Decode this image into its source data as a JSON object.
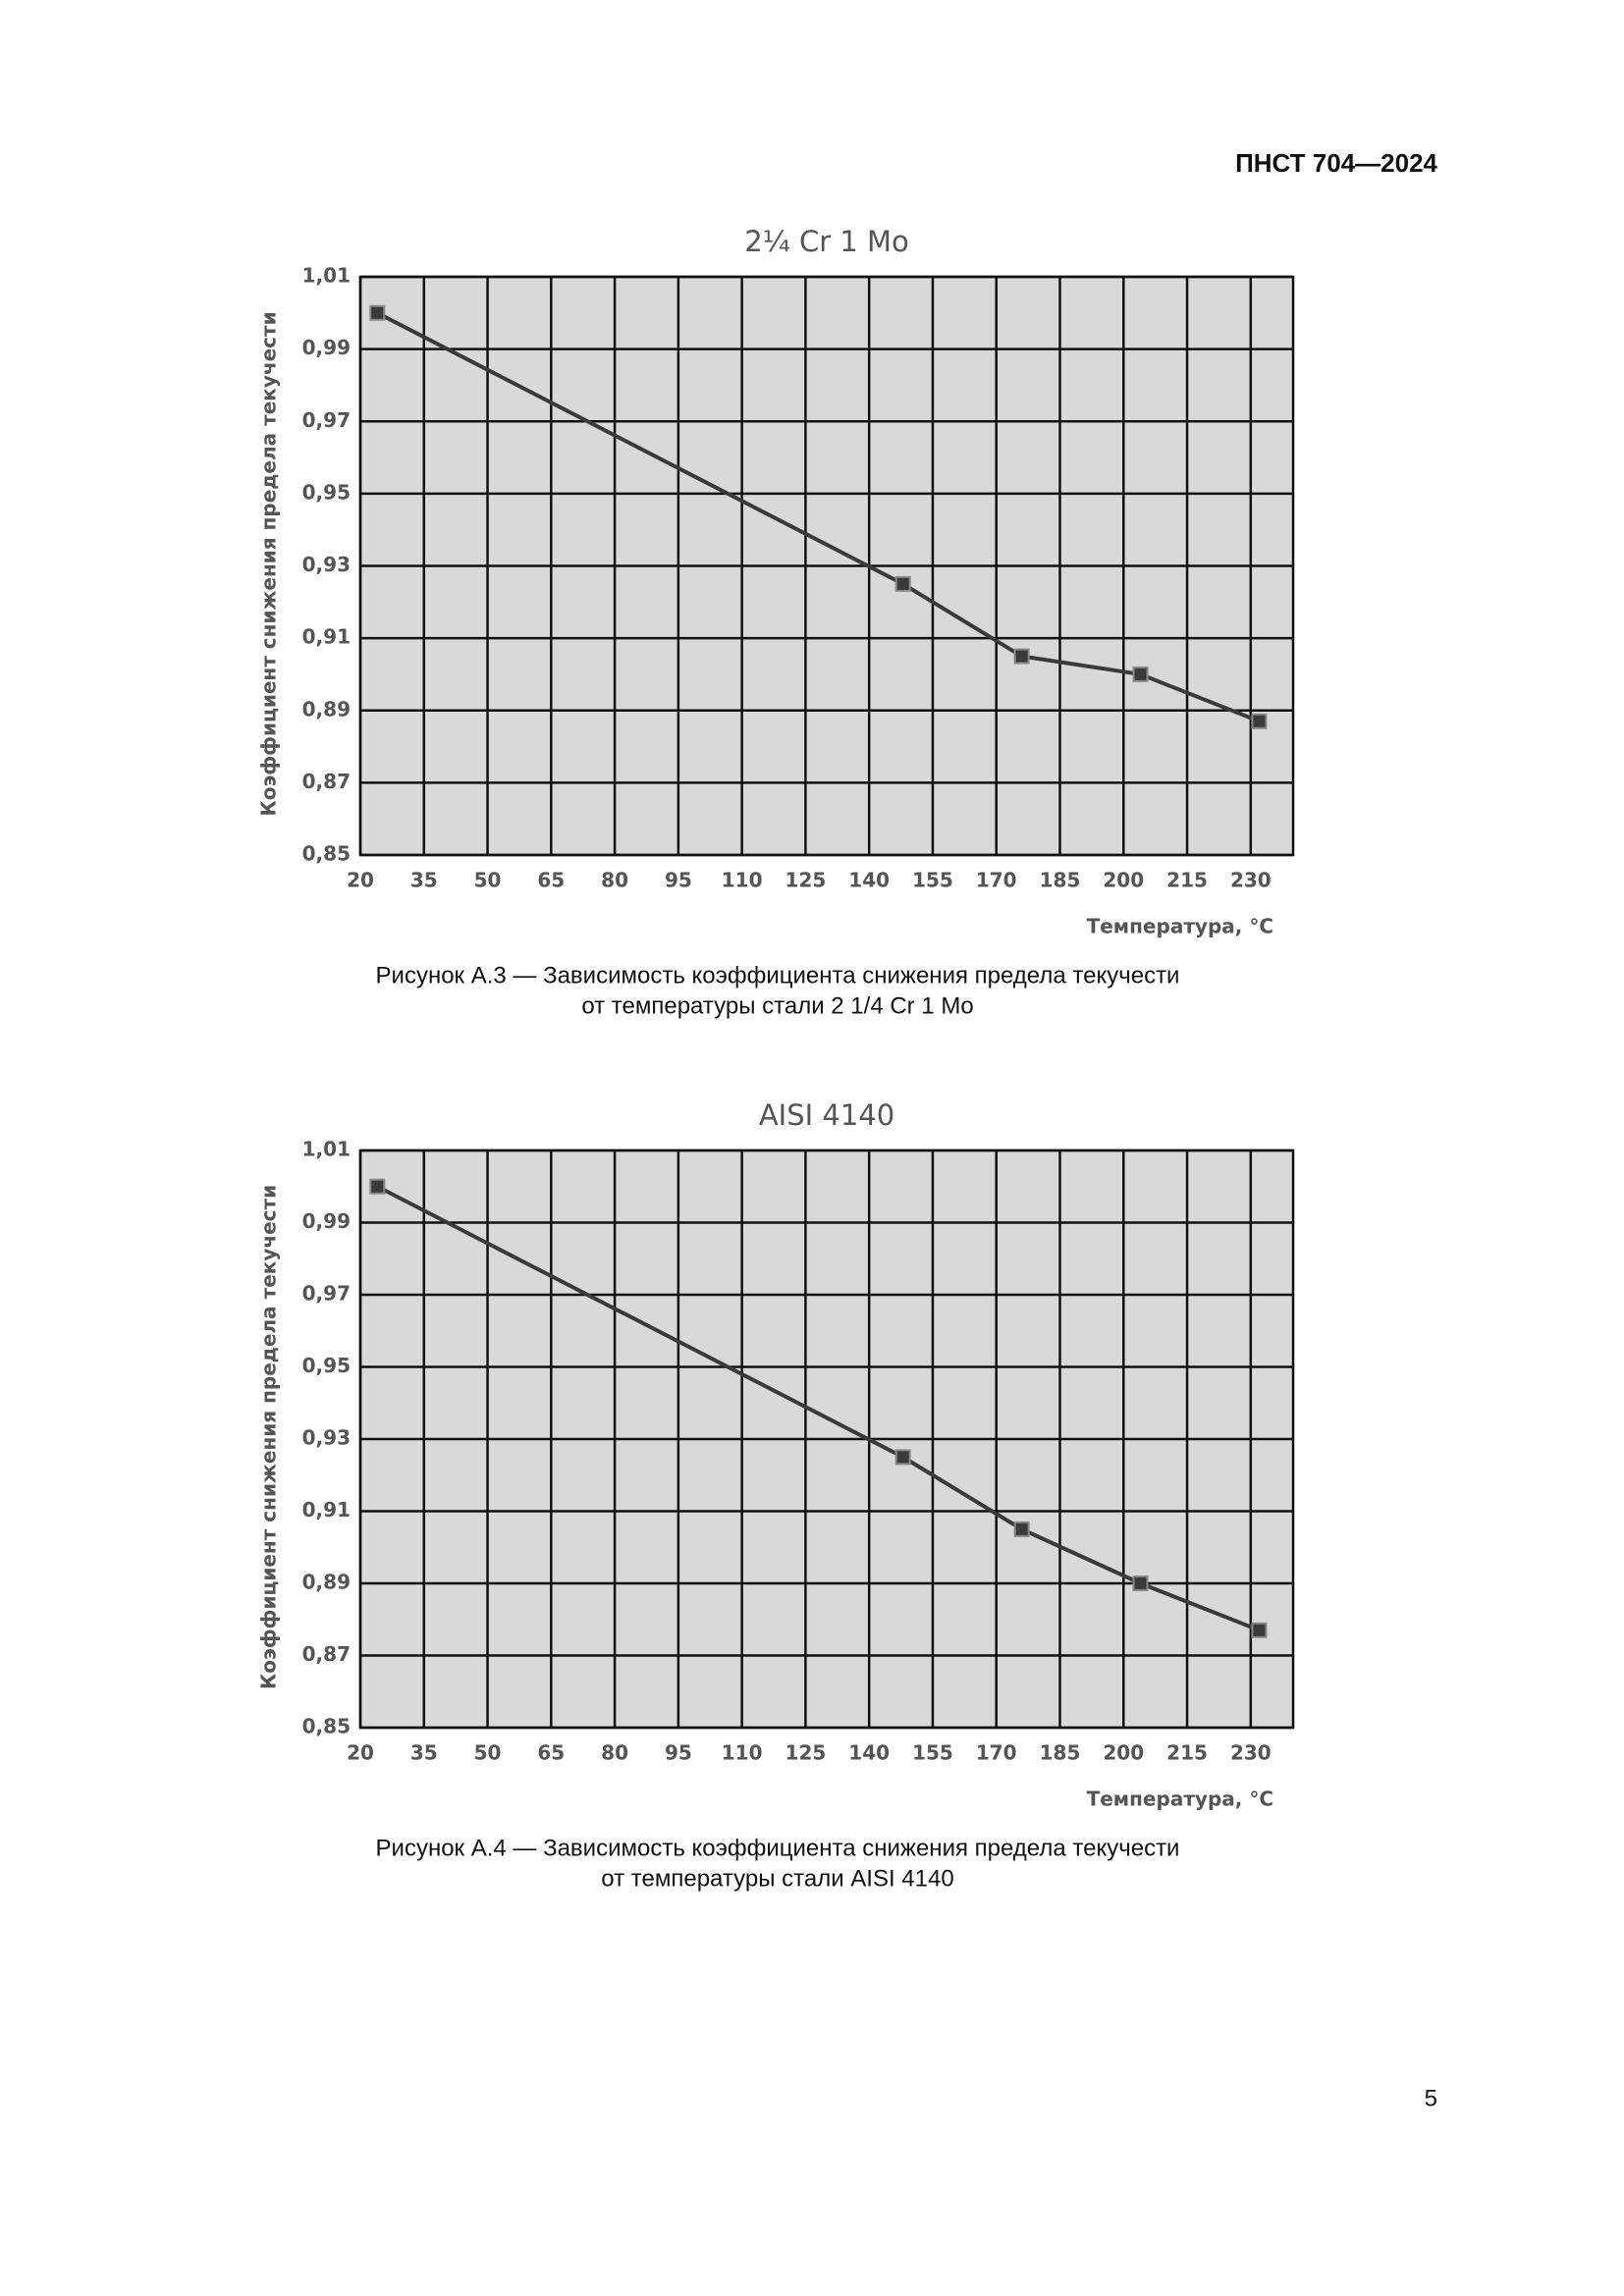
{
  "header": {
    "doc_id": "ПНСТ 704—2024"
  },
  "chart_data": [
    {
      "type": "line",
      "title": "2¼ Cr 1 Mo",
      "y_label": "Коэффициент снижения предела текучести",
      "x_label": "Температура, °C",
      "x": [
        24,
        148,
        176,
        204,
        232
      ],
      "values": [
        1.0,
        0.925,
        0.905,
        0.9,
        0.887
      ],
      "xlim": [
        20,
        240
      ],
      "xticks": [
        20,
        35,
        50,
        65,
        80,
        95,
        110,
        125,
        140,
        155,
        170,
        185,
        200,
        215,
        230
      ],
      "ylim": [
        0.85,
        1.01
      ],
      "yticks": [
        {
          "value": 0.85,
          "label": "0,85"
        },
        {
          "value": 0.87,
          "label": "0,87"
        },
        {
          "value": 0.89,
          "label": "0,89"
        },
        {
          "value": 0.91,
          "label": "0,91"
        },
        {
          "value": 0.93,
          "label": "0,93"
        },
        {
          "value": 0.95,
          "label": "0,95"
        },
        {
          "value": 0.97,
          "label": "0,97"
        },
        {
          "value": 0.99,
          "label": "0,99"
        },
        {
          "value": 1.01,
          "label": "1,01"
        }
      ],
      "grid": true,
      "color": "#3a3a3a",
      "caption": [
        "Рисунок А.3 — Зависимость коэффициента снижения предела текучести",
        "от температуры стали 2 1/4 Cr 1 Mo"
      ]
    },
    {
      "type": "line",
      "title": "AISI 4140",
      "y_label": "Коэффициент снижения предела текучести",
      "x_label": "Температура, °C",
      "x": [
        24,
        148,
        176,
        204,
        232
      ],
      "values": [
        1.0,
        0.925,
        0.905,
        0.89,
        0.877
      ],
      "xlim": [
        20,
        240
      ],
      "xticks": [
        20,
        35,
        50,
        65,
        80,
        95,
        110,
        125,
        140,
        155,
        170,
        185,
        200,
        215,
        230
      ],
      "ylim": [
        0.85,
        1.01
      ],
      "yticks": [
        {
          "value": 0.85,
          "label": "0,85"
        },
        {
          "value": 0.87,
          "label": "0,87"
        },
        {
          "value": 0.89,
          "label": "0,89"
        },
        {
          "value": 0.91,
          "label": "0,91"
        },
        {
          "value": 0.93,
          "label": "0,93"
        },
        {
          "value": 0.95,
          "label": "0,95"
        },
        {
          "value": 0.97,
          "label": "0,97"
        },
        {
          "value": 0.99,
          "label": "0,99"
        },
        {
          "value": 1.01,
          "label": "1,01"
        }
      ],
      "grid": true,
      "color": "#3a3a3a",
      "caption": [
        "Рисунок А.4 — Зависимость коэффициента снижения предела текучести",
        "от температуры стали AISI 4140"
      ]
    }
  ],
  "footer": {
    "page_number": "5"
  }
}
